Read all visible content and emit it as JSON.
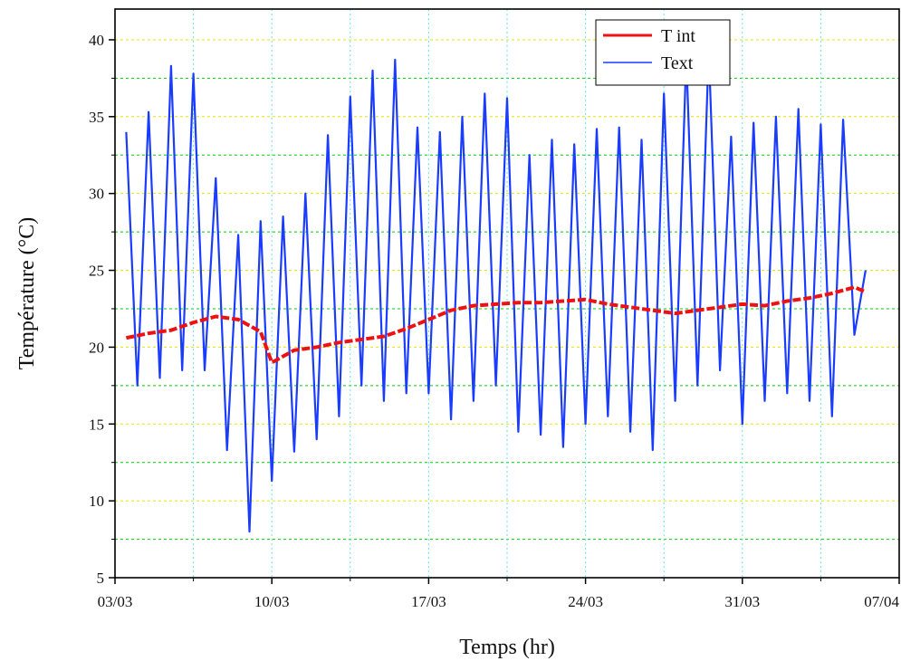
{
  "chart_data": {
    "type": "line",
    "xlabel": "Temps (hr)",
    "ylabel": "Température (°C)",
    "x_tick_labels": [
      "03/03",
      "10/03",
      "17/03",
      "24/03",
      "31/03",
      "07/04"
    ],
    "x_tick_values": [
      "03/03",
      "10/03",
      "17/03",
      "24/03",
      "31/03",
      "07/04"
    ],
    "xlim": [
      "03/03",
      "07/04"
    ],
    "y_tick_labels": [
      "5",
      "10",
      "15",
      "20",
      "25",
      "30",
      "35",
      "40"
    ],
    "ylim": [
      5,
      42
    ],
    "grid": {
      "major_horizontal_color": "#e6e600",
      "minor_horizontal_color": "#00d000",
      "vertical_color": "#66e0f0"
    },
    "legend": {
      "position": "top-right"
    },
    "series": [
      {
        "name": "T int",
        "color": "#ee1111",
        "x": [
          "03/03 12:00",
          "04/03 12:00",
          "05/03 12:00",
          "06/03 12:00",
          "07/03 12:00",
          "08/03 12:00",
          "09/03 12:00",
          "10/03 00:00",
          "11/03 00:00",
          "12/03 00:00",
          "13/03 00:00",
          "14/03 00:00",
          "15/03 00:00",
          "16/03 00:00",
          "17/03 00:00",
          "18/03 00:00",
          "19/03 00:00",
          "20/03 00:00",
          "21/03 00:00",
          "22/03 00:00",
          "23/03 00:00",
          "24/03 00:00",
          "25/03 00:00",
          "26/03 00:00",
          "27/03 00:00",
          "28/03 00:00",
          "29/03 00:00",
          "30/03 00:00",
          "31/03 00:00",
          "01/04 00:00",
          "02/04 00:00",
          "03/04 00:00",
          "04/04 00:00",
          "05/04 00:00",
          "05/04 12:00"
        ],
        "y": [
          20.6,
          20.9,
          21.1,
          21.6,
          22.0,
          21.8,
          21.0,
          19.0,
          19.8,
          20.0,
          20.3,
          20.5,
          20.7,
          21.2,
          21.8,
          22.4,
          22.7,
          22.8,
          22.9,
          22.9,
          23.0,
          23.1,
          22.8,
          22.6,
          22.4,
          22.2,
          22.4,
          22.6,
          22.8,
          22.7,
          23.0,
          23.2,
          23.5,
          23.9,
          23.6
        ]
      },
      {
        "name": "Text",
        "color": "#1a3cff",
        "x": [
          "03/03 12:00",
          "04/03 00:00",
          "04/03 12:00",
          "05/03 00:00",
          "05/03 12:00",
          "06/03 00:00",
          "06/03 12:00",
          "07/03 00:00",
          "07/03 12:00",
          "08/03 00:00",
          "08/03 12:00",
          "09/03 00:00",
          "09/03 12:00",
          "10/03 00:00",
          "10/03 12:00",
          "11/03 00:00",
          "11/03 12:00",
          "12/03 00:00",
          "12/03 12:00",
          "13/03 00:00",
          "13/03 12:00",
          "14/03 00:00",
          "14/03 12:00",
          "15/03 00:00",
          "15/03 12:00",
          "16/03 00:00",
          "16/03 12:00",
          "17/03 00:00",
          "17/03 12:00",
          "18/03 00:00",
          "18/03 12:00",
          "19/03 00:00",
          "19/03 12:00",
          "20/03 00:00",
          "20/03 12:00",
          "21/03 00:00",
          "21/03 12:00",
          "22/03 00:00",
          "22/03 12:00",
          "23/03 00:00",
          "23/03 12:00",
          "24/03 00:00",
          "24/03 12:00",
          "25/03 00:00",
          "25/03 12:00",
          "26/03 00:00",
          "26/03 12:00",
          "27/03 00:00",
          "27/03 12:00",
          "28/03 00:00",
          "28/03 12:00",
          "29/03 00:00",
          "29/03 12:00",
          "30/03 00:00",
          "30/03 12:00",
          "31/03 00:00",
          "31/03 12:00",
          "01/04 00:00",
          "01/04 12:00",
          "02/04 00:00",
          "02/04 12:00",
          "03/04 00:00",
          "03/04 12:00",
          "04/04 00:00",
          "04/04 12:00",
          "05/04 00:00",
          "05/04 12:00"
        ],
        "y": [
          34.0,
          17.5,
          35.3,
          18.0,
          38.3,
          18.5,
          37.8,
          18.5,
          31.0,
          13.3,
          27.3,
          8.0,
          28.2,
          11.3,
          28.5,
          13.2,
          30.0,
          14.0,
          33.8,
          15.5,
          36.3,
          17.5,
          38.0,
          16.5,
          38.7,
          17.0,
          34.3,
          17.0,
          34.0,
          15.3,
          35.0,
          16.5,
          36.5,
          17.5,
          36.2,
          14.5,
          32.5,
          14.3,
          33.5,
          13.5,
          33.2,
          15.0,
          34.2,
          15.5,
          34.3,
          14.5,
          33.5,
          13.3,
          36.5,
          16.5,
          39.0,
          17.5,
          39.4,
          18.5,
          33.7,
          15.0,
          34.6,
          16.5,
          35.0,
          17.0,
          35.5,
          16.5,
          34.5,
          15.5,
          34.8,
          20.8,
          25.0
        ]
      }
    ]
  }
}
